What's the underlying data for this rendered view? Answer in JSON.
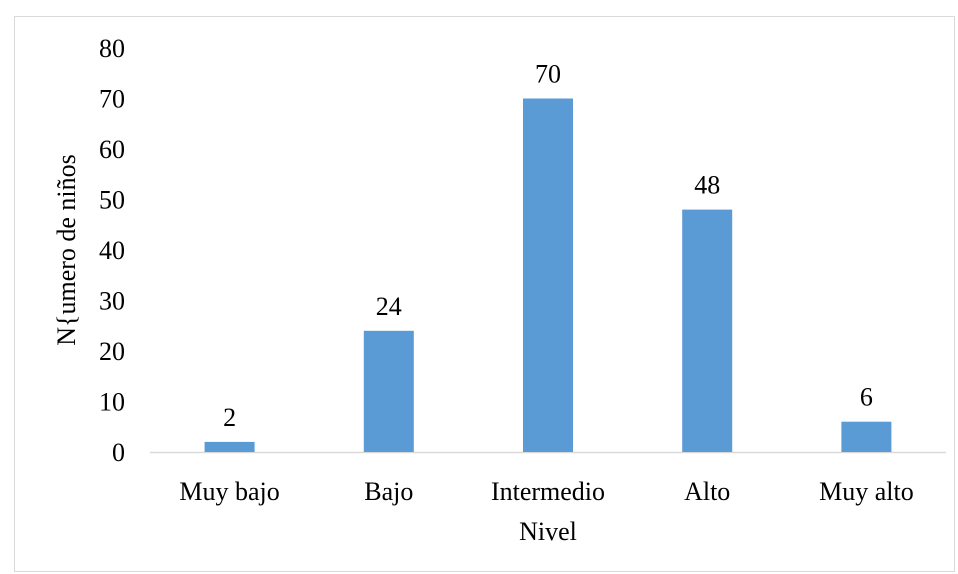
{
  "chart_data": {
    "type": "bar",
    "title": "",
    "xlabel": "Nivel",
    "ylabel": "N{umero de niños",
    "categories": [
      "Muy bajo",
      "Bajo",
      "Intermedio",
      "Alto",
      "Muy alto"
    ],
    "values": [
      2,
      24,
      70,
      48,
      6
    ],
    "data_labels": [
      "2",
      "24",
      "70",
      "48",
      "6"
    ],
    "ylim": [
      0,
      80
    ],
    "yticks": [
      "0",
      "10",
      "20",
      "30",
      "40",
      "50",
      "60",
      "70",
      "80"
    ],
    "grid": false,
    "legend": "none",
    "bar_color": "#5b9bd5",
    "axis_color": "#d9d9d9"
  }
}
